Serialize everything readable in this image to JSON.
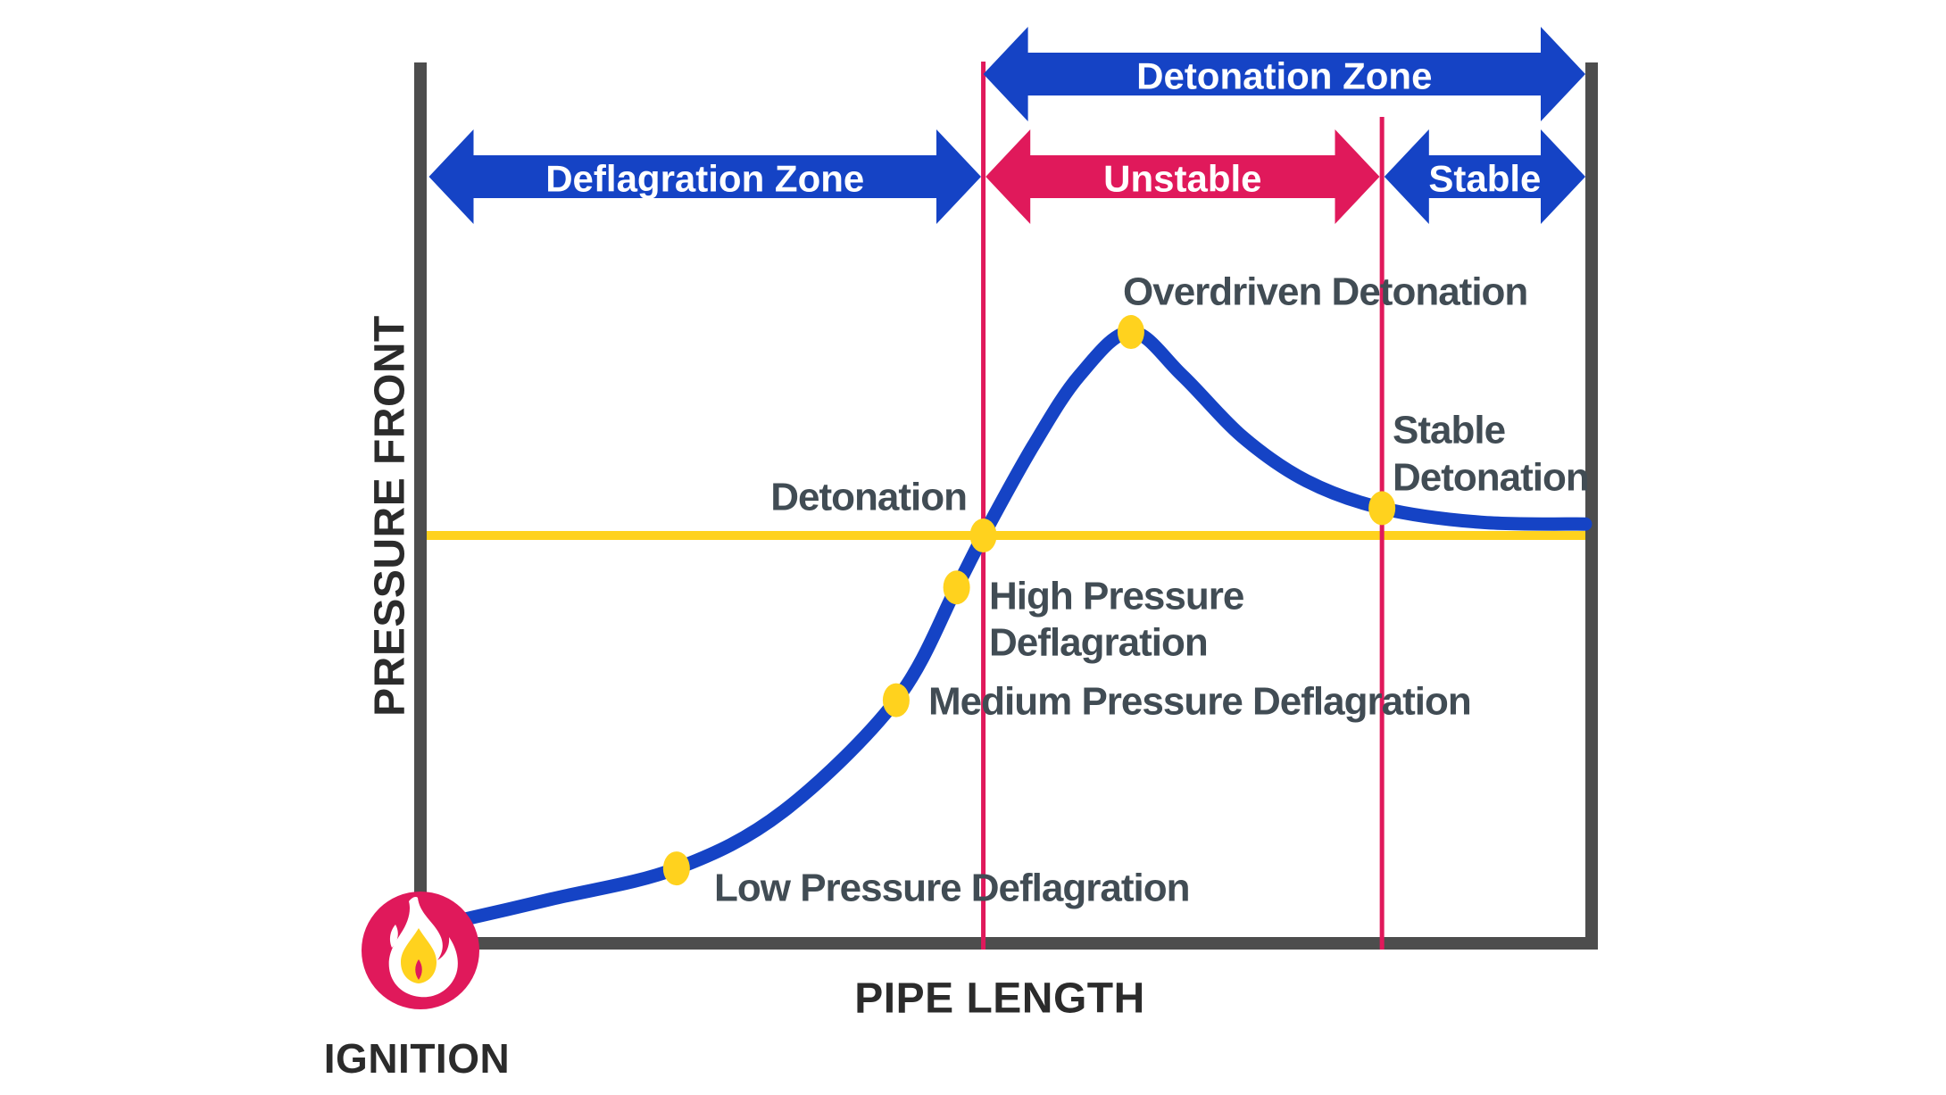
{
  "labels": {
    "y_axis": "PRESSURE FRONT",
    "x_axis": "PIPE LENGTH",
    "ignition": "IGNITION"
  },
  "colors": {
    "blue": "#1543C5",
    "crimson": "#E0195B",
    "yellow": "#FFD21E",
    "axis_gray": "#4D4D4D",
    "annotation_text": "#414C54",
    "axis_text": "#2B2B2B",
    "arrow_text": "#FFFFFF"
  },
  "chart_data": {
    "type": "line",
    "title": "",
    "xlabel": "PIPE LENGTH",
    "ylabel": "PRESSURE FRONT",
    "axis_note": "Conceptual diagram; no numeric ticks. x and y are normalized 0-100 (percent of plot area).",
    "xlim": [
      0,
      100
    ],
    "ylim": [
      0,
      100
    ],
    "grid": false,
    "series": [
      {
        "name": "pressure-front-curve",
        "color": "#1543C5",
        "x": [
          0.5,
          11,
          21.8,
          31,
          40.7,
          45.9,
          48.2,
          52.5,
          56.5,
          60.9,
          65.3,
          70.5,
          76,
          82.5,
          91,
          100
        ],
        "y": [
          1.8,
          5,
          8.5,
          15,
          27.6,
          40.4,
          46.3,
          56.5,
          64.5,
          69.4,
          64.5,
          57.5,
          52.5,
          49.4,
          47.8,
          47.6
        ]
      }
    ],
    "points": [
      {
        "label": "Low Pressure Deflagration",
        "x": 21.8,
        "y": 8.5
      },
      {
        "label": "Medium Pressure Deflagration",
        "x": 40.7,
        "y": 27.6
      },
      {
        "label": "High Pressure Deflagration",
        "label_lines": [
          "High Pressure",
          "Deflagration"
        ],
        "x": 45.9,
        "y": 40.4
      },
      {
        "label": "Detonation",
        "x": 48.2,
        "y": 46.3
      },
      {
        "label": "Overdriven Detonation",
        "x": 60.9,
        "y": 69.4
      },
      {
        "label": "Stable Detonation",
        "label_lines": [
          "Stable",
          "Detonation"
        ],
        "x": 82.5,
        "y": 49.4
      }
    ],
    "reference_lines": {
      "detonation_pressure": {
        "orientation": "horizontal",
        "y": 46.3,
        "color": "#FFD21E"
      },
      "zone_boundary_unstable": {
        "orientation": "vertical",
        "x": 48.2,
        "color": "#E0195B"
      },
      "zone_boundary_stable": {
        "orientation": "vertical",
        "x": 82.5,
        "color": "#E0195B"
      }
    },
    "zones": [
      {
        "label": "Detonation Zone",
        "row": "top",
        "x_from": 48.2,
        "x_to": 100,
        "color": "#1543C5"
      },
      {
        "label": "Deflagration Zone",
        "row": "bottom",
        "x_from": 0.5,
        "x_to": 48.0,
        "color": "#1543C5"
      },
      {
        "label": "Unstable",
        "row": "bottom",
        "x_from": 48.4,
        "x_to": 82.3,
        "color": "#E0195B"
      },
      {
        "label": "Stable",
        "row": "bottom",
        "x_from": 82.7,
        "x_to": 100,
        "color": "#1543C5"
      }
    ],
    "start_marker": {
      "label": "IGNITION",
      "x": 0,
      "y": 0
    }
  }
}
